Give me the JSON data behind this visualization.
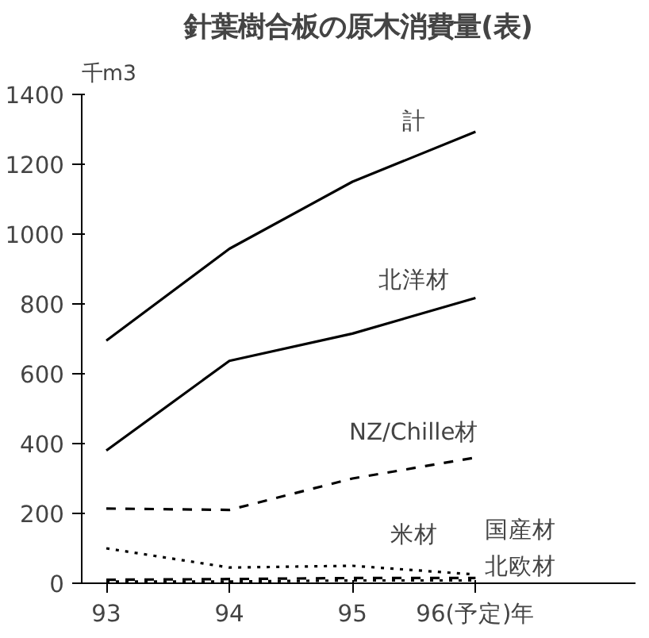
{
  "chart_data": {
    "type": "line",
    "title": "針葉樹合板の原木消費量(表)",
    "ylabel": "千m3",
    "x": [
      93,
      94,
      95,
      96
    ],
    "series": [
      {
        "name": "計",
        "color": "#000000",
        "line_style": "solid",
        "values": [
          695,
          958,
          1150,
          1293
        ]
      },
      {
        "name": "北洋材",
        "color": "#000000",
        "line_style": "solid",
        "values": [
          380,
          637,
          715,
          817
        ]
      },
      {
        "name": "NZ/Chille材",
        "color": "#000000",
        "line_style": "dashed",
        "values": [
          214,
          210,
          300,
          360
        ]
      },
      {
        "name": "米材",
        "color": "#000000",
        "line_style": "dotted",
        "values": [
          100,
          45,
          50,
          25
        ]
      },
      {
        "name": "国産材",
        "color": "#000000",
        "line_style": "dashed",
        "values": [
          10,
          12,
          15,
          15
        ]
      },
      {
        "name": "北欧材",
        "color": "#000000",
        "line_style": "dotted",
        "values": [
          5,
          5,
          8,
          8
        ]
      }
    ],
    "xlim": [
      92.8,
      97.3
    ],
    "ylim": [
      0,
      1400
    ],
    "xticks": [
      93,
      94,
      95,
      {
        "value": 96,
        "label": "96(予定)年"
      }
    ],
    "yticks": [
      0,
      200,
      400,
      600,
      800,
      1000,
      1200,
      1400
    ],
    "grid": false,
    "marker": "none"
  }
}
